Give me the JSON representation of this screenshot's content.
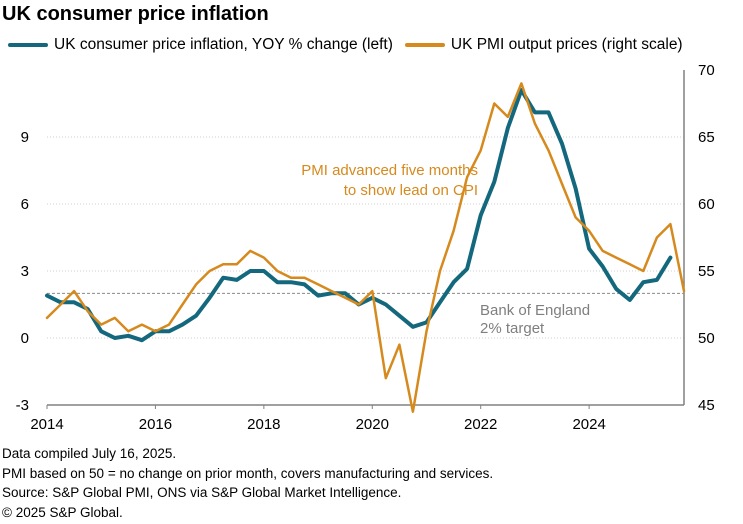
{
  "title": "UK consumer price inflation",
  "legend": [
    {
      "label": "UK consumer price inflation, YOY % change (left)",
      "color": "#13687d"
    },
    {
      "label": "UK PMI output prices (right scale)",
      "color": "#d68a1e"
    }
  ],
  "footer": [
    "Data compiled July 16, 2025.",
    "PMI based on 50 = no change on prior month, covers manufacturing and services.",
    "Source: S&P Global PMI, ONS via S&P Global Market Intelligence.",
    "© 2025 S&P Global."
  ],
  "chart_data": {
    "type": "line",
    "title": "UK consumer price inflation",
    "x_ticks": [
      "2014",
      "2016",
      "2018",
      "2020",
      "2022",
      "2024"
    ],
    "y_left_ticks": [
      "-3",
      "0",
      "3",
      "6",
      "9"
    ],
    "y_right_ticks": [
      "45",
      "50",
      "55",
      "60",
      "65",
      "70"
    ],
    "y_left_range": [
      -3,
      12
    ],
    "y_right_range": [
      45,
      70
    ],
    "x_range": [
      2014.0,
      2025.75
    ],
    "reference_line": {
      "value": 2,
      "axis": "left",
      "label_lines": [
        "Bank of England",
        "2% target"
      ]
    },
    "annotation": {
      "lines": [
        "PMI advanced five months",
        "to show lead on CPI"
      ],
      "color": "#d68a1e"
    },
    "series": [
      {
        "name": "UK consumer price inflation, YOY % change (left)",
        "axis": "left",
        "color": "#13687d",
        "x": [
          2014.0,
          2014.25,
          2014.5,
          2014.75,
          2015.0,
          2015.25,
          2015.5,
          2015.75,
          2016.0,
          2016.25,
          2016.5,
          2016.75,
          2017.0,
          2017.25,
          2017.5,
          2017.75,
          2018.0,
          2018.25,
          2018.5,
          2018.75,
          2019.0,
          2019.25,
          2019.5,
          2019.75,
          2020.0,
          2020.25,
          2020.5,
          2020.75,
          2021.0,
          2021.25,
          2021.5,
          2021.75,
          2022.0,
          2022.25,
          2022.5,
          2022.75,
          2023.0,
          2023.25,
          2023.5,
          2023.75,
          2024.0,
          2024.25,
          2024.5,
          2024.75,
          2025.0,
          2025.25,
          2025.5
        ],
        "values": [
          1.9,
          1.6,
          1.6,
          1.3,
          0.3,
          0.0,
          0.1,
          -0.1,
          0.3,
          0.3,
          0.6,
          1.0,
          1.8,
          2.7,
          2.6,
          3.0,
          3.0,
          2.5,
          2.5,
          2.4,
          1.9,
          2.0,
          2.0,
          1.5,
          1.8,
          1.5,
          1.0,
          0.5,
          0.7,
          1.6,
          2.5,
          3.1,
          5.5,
          7.0,
          9.4,
          11.1,
          10.1,
          10.1,
          8.7,
          6.7,
          4.0,
          3.2,
          2.2,
          1.7,
          2.5,
          2.6,
          3.6
        ]
      },
      {
        "name": "UK PMI output prices (right scale)",
        "axis": "right",
        "color": "#d68a1e",
        "x": [
          2014.0,
          2014.25,
          2014.5,
          2014.75,
          2015.0,
          2015.25,
          2015.5,
          2015.75,
          2016.0,
          2016.25,
          2016.5,
          2016.75,
          2017.0,
          2017.25,
          2017.5,
          2017.75,
          2018.0,
          2018.25,
          2018.5,
          2018.75,
          2019.0,
          2019.25,
          2019.5,
          2019.75,
          2020.0,
          2020.25,
          2020.5,
          2020.75,
          2021.0,
          2021.25,
          2021.5,
          2021.75,
          2022.0,
          2022.25,
          2022.5,
          2022.75,
          2023.0,
          2023.25,
          2023.5,
          2023.75,
          2024.0,
          2024.25,
          2024.5,
          2024.75,
          2025.0,
          2025.25,
          2025.5,
          2025.75
        ],
        "values": [
          51.5,
          52.5,
          53.5,
          52.0,
          51.0,
          51.5,
          50.5,
          51.0,
          50.5,
          51.0,
          52.5,
          54.0,
          55.0,
          55.5,
          55.5,
          56.5,
          56.0,
          55.0,
          54.5,
          54.5,
          54.0,
          53.5,
          53.0,
          52.5,
          53.5,
          47.0,
          49.5,
          44.5,
          50.5,
          55.0,
          58.0,
          62.0,
          64.0,
          67.5,
          66.5,
          69.0,
          66.0,
          64.0,
          61.5,
          59.0,
          58.0,
          56.5,
          56.0,
          55.5,
          55.0,
          57.5,
          58.5,
          53.5
        ]
      }
    ],
    "grid": "horizontal dotted"
  }
}
